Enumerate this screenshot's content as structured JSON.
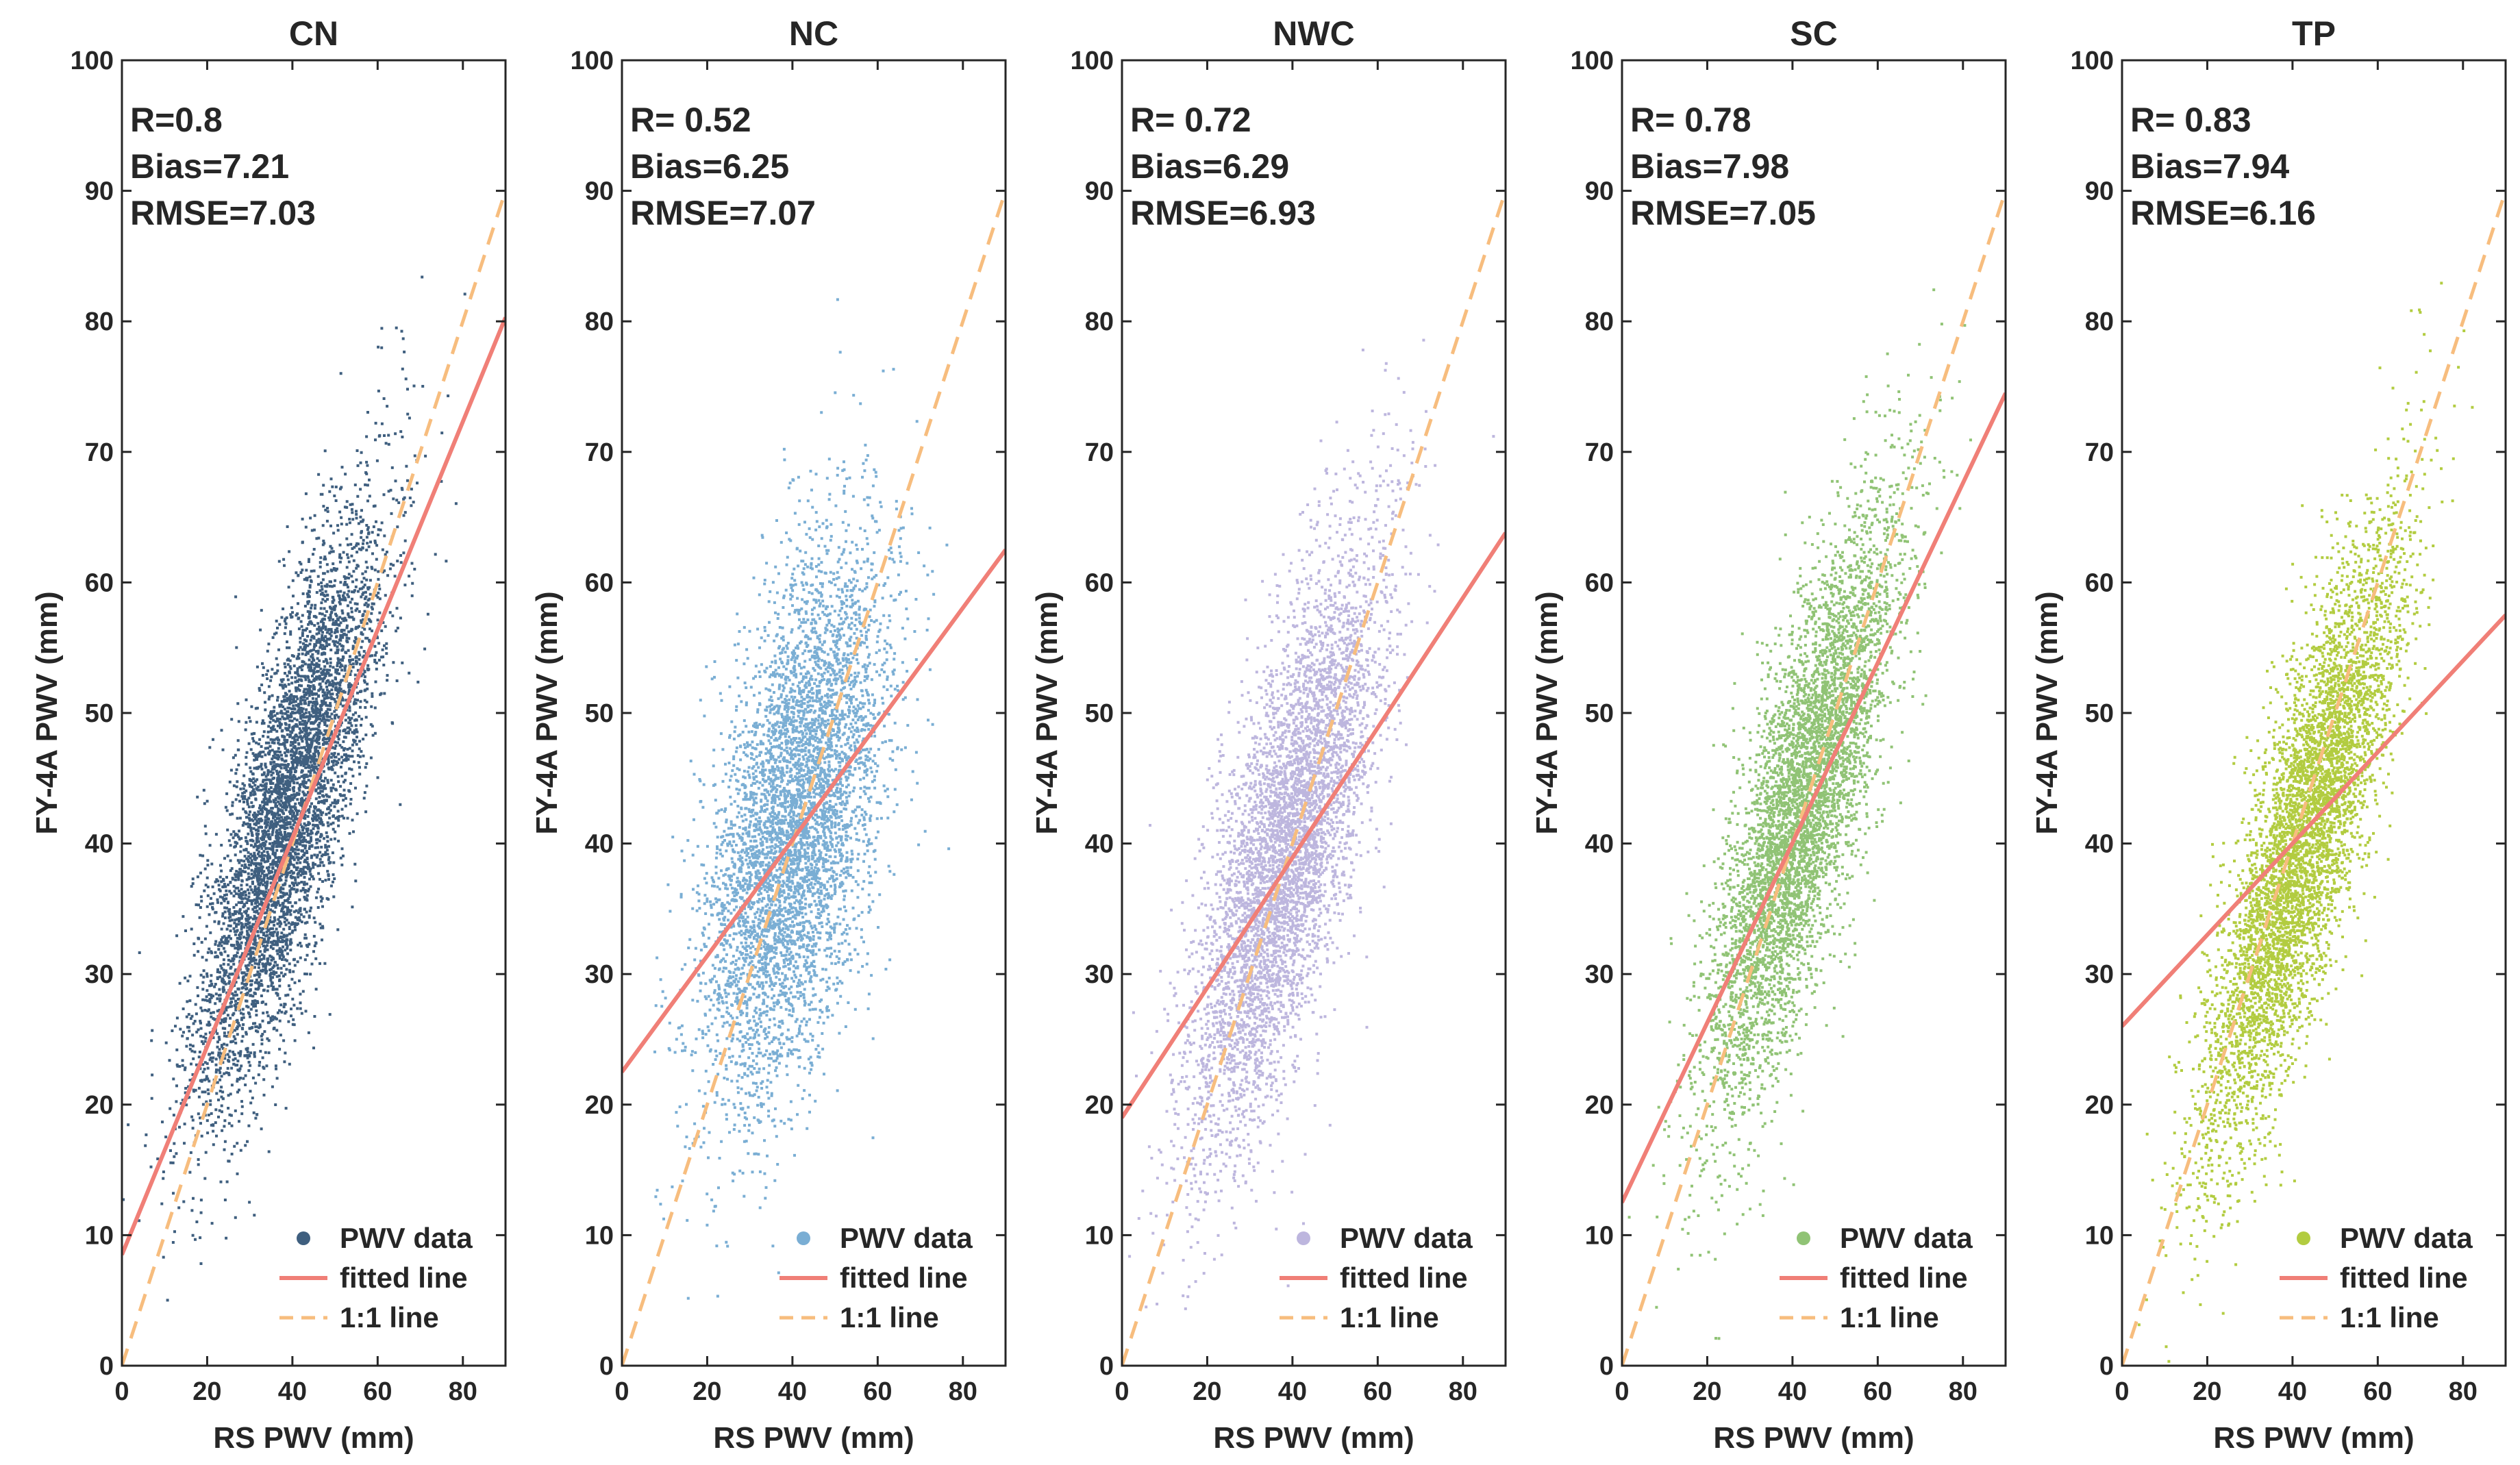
{
  "chart_data": [
    {
      "type": "scatter",
      "title": "CN",
      "xlabel": "RS PWV  (mm)",
      "ylabel": "FY-4A PWV (mm)",
      "xlim": [
        0,
        90
      ],
      "ylim": [
        0,
        100
      ],
      "xticks": [
        0,
        20,
        40,
        60,
        80
      ],
      "yticks": [
        0,
        10,
        20,
        30,
        40,
        50,
        60,
        70,
        80,
        90,
        100
      ],
      "color": "#3f5f7f",
      "scatter_center": [
        38.5,
        42.5
      ],
      "scatter_spread": [
        11.0,
        11.5
      ],
      "scatter_corr": 0.8,
      "fit_line": {
        "intercept": 8.5,
        "end_y": 80.3
      },
      "stats": [
        "R=0.8",
        "Bias=7.21",
        "RMSE=7.03"
      ],
      "legend": [
        "PWV data",
        "fitted line",
        "1:1 line"
      ],
      "legend_position": "bottom-right"
    },
    {
      "type": "scatter",
      "title": "NC",
      "xlabel": "RS PWV (mm)",
      "ylabel": "FY-4A PWV (mm)",
      "xlim": [
        0,
        90
      ],
      "ylim": [
        0,
        100
      ],
      "xticks": [
        0,
        20,
        40,
        60,
        80
      ],
      "yticks": [
        0,
        10,
        20,
        30,
        40,
        50,
        60,
        70,
        80,
        90,
        100
      ],
      "color": "#7aaed4",
      "scatter_center": [
        40.0,
        41.5
      ],
      "scatter_spread": [
        10.5,
        10.5
      ],
      "scatter_corr": 0.52,
      "fit_line": {
        "intercept": 22.5,
        "end_y": 62.5
      },
      "stats": [
        "R= 0.52",
        "Bias=6.25",
        "RMSE=7.07"
      ],
      "legend": [
        "PWV data",
        "fitted line",
        "1:1 line"
      ],
      "legend_position": "bottom-right"
    },
    {
      "type": "scatter",
      "title": "NWC",
      "xlabel": "RS PWV (mm)",
      "ylabel": "FY-4A PWV (mm)",
      "xlim": [
        0,
        90
      ],
      "ylim": [
        0,
        100
      ],
      "xticks": [
        0,
        20,
        40,
        60,
        80
      ],
      "yticks": [
        0,
        10,
        20,
        30,
        40,
        50,
        60,
        70,
        80,
        90,
        100
      ],
      "color": "#bdb6de",
      "scatter_center": [
        38.0,
        39.5
      ],
      "scatter_spread": [
        11.0,
        11.5
      ],
      "scatter_corr": 0.72,
      "fit_line": {
        "intercept": 19.0,
        "end_y": 63.8
      },
      "stats": [
        "R= 0.72",
        "Bias=6.29",
        "RMSE=6.93"
      ],
      "legend": [
        "PWV data",
        "fitted line",
        "1:1 line"
      ],
      "legend_position": "bottom-right"
    },
    {
      "type": "scatter",
      "title": "SC",
      "xlabel": "RS PWV (mm)",
      "ylabel": "FY-4A PWV (mm)",
      "xlim": [
        0,
        90
      ],
      "ylim": [
        0,
        100
      ],
      "xticks": [
        0,
        20,
        40,
        60,
        80
      ],
      "yticks": [
        0,
        10,
        20,
        30,
        40,
        50,
        60,
        70,
        80,
        90,
        100
      ],
      "color": "#90c375",
      "scatter_center": [
        42.0,
        43.0
      ],
      "scatter_spread": [
        11.0,
        11.5
      ],
      "scatter_corr": 0.78,
      "fit_line": {
        "intercept": 12.5,
        "end_y": 74.5
      },
      "stats": [
        "R= 0.78",
        "Bias=7.98",
        "RMSE=7.05"
      ],
      "legend": [
        "PWV data",
        "fitted line",
        "1:1 line"
      ],
      "legend_position": "bottom-right"
    },
    {
      "type": "scatter",
      "title": "TP",
      "xlabel": "RS PWV (mm)",
      "ylabel": "FY-4A PWV (mm)",
      "xlim": [
        0,
        90
      ],
      "ylim": [
        0,
        100
      ],
      "xticks": [
        0,
        20,
        40,
        60,
        80
      ],
      "yticks": [
        0,
        10,
        20,
        30,
        40,
        50,
        60,
        70,
        80,
        90,
        100
      ],
      "color": "#b2cc40",
      "scatter_center": [
        42.0,
        40.0
      ],
      "scatter_spread": [
        11.5,
        12.0
      ],
      "scatter_corr": 0.83,
      "fit_line": {
        "intercept": 26.0,
        "end_y": 57.5
      },
      "stats": [
        "R= 0.83",
        "Bias=7.94",
        "RMSE=6.16"
      ],
      "legend": [
        "PWV data",
        "fitted line",
        "1:1 line"
      ],
      "legend_position": "bottom-right"
    }
  ],
  "style": {
    "fit_line_color": "#f07f77",
    "one_to_one_color": "#f7bd7e",
    "axis_color": "#262626",
    "background": "#ffffff"
  }
}
